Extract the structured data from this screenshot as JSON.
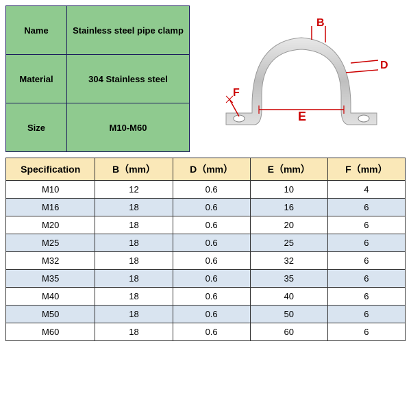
{
  "info": {
    "rows": [
      {
        "label": "Name",
        "value": "Stainless steel pipe clamp"
      },
      {
        "label": "Material",
        "value": "304 Stainless steel"
      },
      {
        "label": "Size",
        "value": "M10-M60"
      }
    ],
    "cell_bg": "#8fca8f",
    "border_color": "#1a1a5c",
    "label_fontsize": 13,
    "value_fontsize": 12
  },
  "diagram": {
    "labels": {
      "B": "B",
      "D": "D",
      "E": "E",
      "F": "F"
    },
    "label_color": "#cc0000",
    "clamp_fill": "#c8c8c8",
    "clamp_stroke": "#888888"
  },
  "spec": {
    "header_bg": "#fae8b8",
    "alt_row_bg": "#d9e4f0",
    "border_color": "#333333",
    "columns": [
      "Specification",
      "B（mm）",
      "D（mm）",
      "E（mm）",
      "F（mm）"
    ],
    "rows": [
      {
        "spec": "M10",
        "B": "12",
        "D": "0.6",
        "E": "10",
        "F": "4",
        "alt": false
      },
      {
        "spec": "M16",
        "B": "18",
        "D": "0.6",
        "E": "16",
        "F": "6",
        "alt": true
      },
      {
        "spec": "M20",
        "B": "18",
        "D": "0.6",
        "E": "20",
        "F": "6",
        "alt": false
      },
      {
        "spec": "M25",
        "B": "18",
        "D": "0.6",
        "E": "25",
        "F": "6",
        "alt": true
      },
      {
        "spec": "M32",
        "B": "18",
        "D": "0.6",
        "E": "32",
        "F": "6",
        "alt": false
      },
      {
        "spec": "M35",
        "B": "18",
        "D": "0.6",
        "E": "35",
        "F": "6",
        "alt": true
      },
      {
        "spec": "M40",
        "B": "18",
        "D": "0.6",
        "E": "40",
        "F": "6",
        "alt": false
      },
      {
        "spec": "M50",
        "B": "18",
        "D": "0.6",
        "E": "50",
        "F": "6",
        "alt": true
      },
      {
        "spec": "M60",
        "B": "18",
        "D": "0.6",
        "E": "60",
        "F": "6",
        "alt": false
      }
    ]
  }
}
